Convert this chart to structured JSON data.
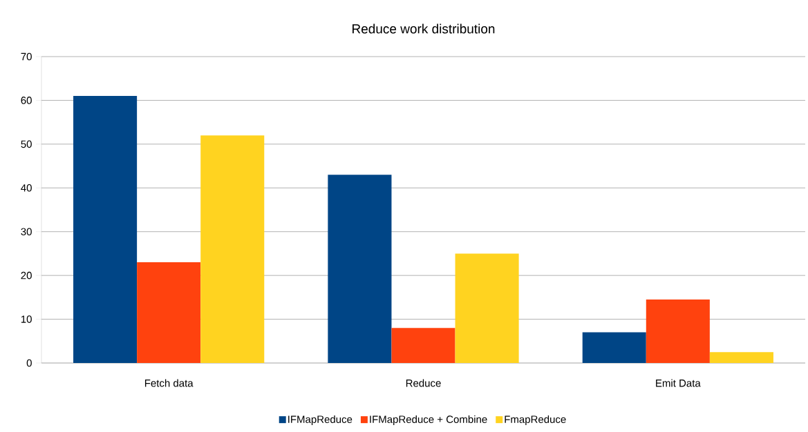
{
  "chart_data": {
    "type": "bar",
    "title": "Reduce work distribution",
    "categories": [
      "Fetch data",
      "Reduce",
      "Emit Data"
    ],
    "series": [
      {
        "name": "IFMapReduce",
        "color": "#004586",
        "values": [
          61,
          43,
          7
        ]
      },
      {
        "name": "IFMapReduce + Combine",
        "color": "#ff420e",
        "values": [
          23,
          8,
          14.5
        ]
      },
      {
        "name": "FmapReduce",
        "color": "#ffd320",
        "values": [
          52,
          25,
          2.5
        ]
      }
    ],
    "ylim": [
      0,
      70
    ],
    "yticks": [
      0,
      10,
      20,
      30,
      40,
      50,
      60,
      70
    ],
    "grid": "y",
    "legend": "bottom"
  }
}
